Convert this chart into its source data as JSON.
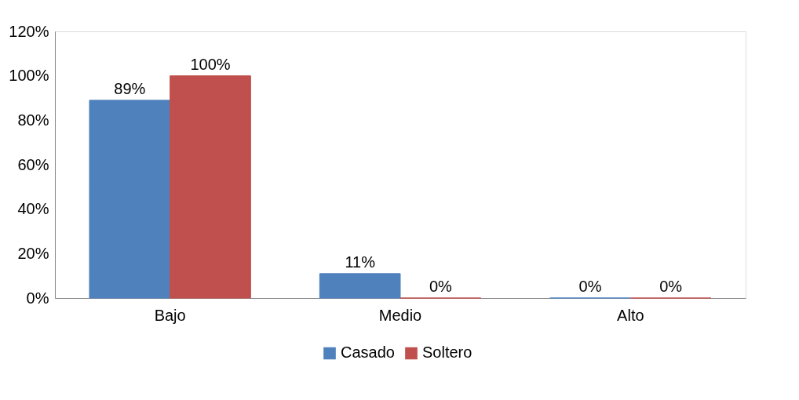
{
  "chart_data": {
    "type": "bar",
    "categories": [
      "Bajo",
      "Medio",
      "Alto"
    ],
    "series": [
      {
        "name": "Casado",
        "color": "#4f81bd",
        "values": [
          89,
          11,
          0
        ],
        "value_labels": [
          "89%",
          "11%",
          "0%"
        ]
      },
      {
        "name": "Soltero",
        "color": "#c0504d",
        "values": [
          100,
          0,
          0
        ],
        "value_labels": [
          "100%",
          "0%",
          "0%"
        ]
      }
    ],
    "ylim": [
      0,
      120
    ],
    "yticks": [
      {
        "value": 0,
        "label": "0%"
      },
      {
        "value": 20,
        "label": "20%"
      },
      {
        "value": 40,
        "label": "40%"
      },
      {
        "value": 60,
        "label": "60%"
      },
      {
        "value": 80,
        "label": "80%"
      },
      {
        "value": 100,
        "label": "100%"
      },
      {
        "value": 120,
        "label": "120%"
      }
    ],
    "grid": false,
    "legend": "bottom"
  }
}
